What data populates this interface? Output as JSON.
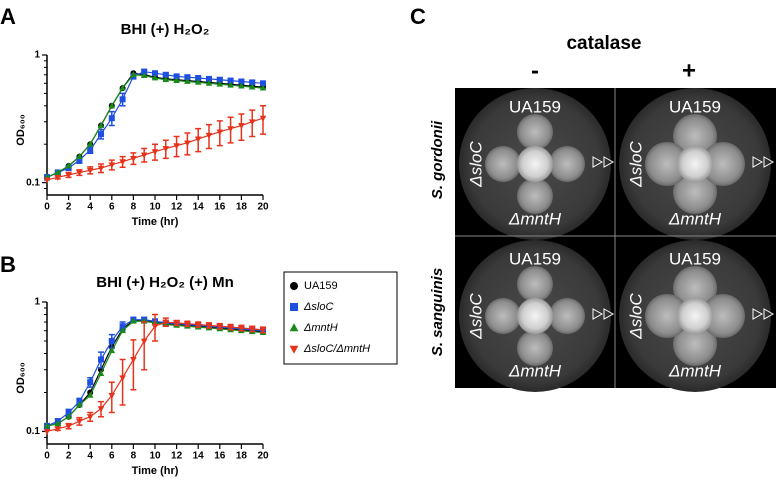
{
  "chart_data": [
    {
      "type": "line",
      "panel": "A",
      "title": "BHI (+) H₂O₂",
      "x_label": "Time (hr)",
      "y_label": "OD₆₀₀",
      "log_y": true,
      "x": [
        0,
        1,
        2,
        3,
        4,
        5,
        6,
        7,
        8,
        9,
        10,
        11,
        12,
        13,
        14,
        15,
        16,
        17,
        18,
        19,
        20
      ],
      "xlim": [
        0,
        20
      ],
      "xticks": [
        0,
        2,
        4,
        6,
        8,
        10,
        12,
        14,
        16,
        18,
        20
      ],
      "ylim": [
        0.08,
        1
      ],
      "yticks": [
        0.1,
        1
      ],
      "series": [
        {
          "name": "UA159",
          "color": "#000000",
          "marker": "circle",
          "values": [
            0.11,
            0.12,
            0.135,
            0.16,
            0.2,
            0.28,
            0.4,
            0.55,
            0.72,
            0.7,
            0.67,
            0.65,
            0.64,
            0.63,
            0.62,
            0.61,
            0.6,
            0.59,
            0.58,
            0.57,
            0.56
          ]
        },
        {
          "name": "ΔsloC",
          "color": "#1f4fe0",
          "marker": "square",
          "values": [
            0.11,
            0.12,
            0.13,
            0.15,
            0.18,
            0.24,
            0.32,
            0.45,
            0.68,
            0.74,
            0.72,
            0.7,
            0.68,
            0.67,
            0.66,
            0.65,
            0.64,
            0.63,
            0.62,
            0.61,
            0.6
          ],
          "errors": [
            0.005,
            0.005,
            0.005,
            0.008,
            0.01,
            0.02,
            0.04,
            0.05,
            0.03,
            0.03,
            0.02,
            0.02,
            0.02,
            0.02,
            0.02,
            0.02,
            0.02,
            0.02,
            0.02,
            0.02,
            0.02
          ]
        },
        {
          "name": "ΔmntH",
          "color": "#1a8a1a",
          "marker": "triangle-up",
          "values": [
            0.11,
            0.12,
            0.135,
            0.16,
            0.2,
            0.28,
            0.4,
            0.55,
            0.7,
            0.69,
            0.66,
            0.64,
            0.63,
            0.62,
            0.61,
            0.6,
            0.59,
            0.58,
            0.57,
            0.56,
            0.55
          ]
        },
        {
          "name": "ΔsloC/ΔmntH",
          "color": "#e8331c",
          "marker": "triangle-down",
          "values": [
            0.105,
            0.11,
            0.115,
            0.12,
            0.125,
            0.13,
            0.138,
            0.146,
            0.155,
            0.165,
            0.175,
            0.185,
            0.195,
            0.205,
            0.22,
            0.235,
            0.25,
            0.265,
            0.28,
            0.3,
            0.32
          ],
          "errors": [
            0,
            0.003,
            0.005,
            0.006,
            0.008,
            0.01,
            0.012,
            0.014,
            0.016,
            0.02,
            0.025,
            0.03,
            0.035,
            0.04,
            0.045,
            0.05,
            0.055,
            0.06,
            0.065,
            0.07,
            0.08
          ]
        }
      ]
    },
    {
      "type": "line",
      "panel": "B",
      "title": "BHI (+) H₂O₂ (+) Mn",
      "x_label": "Time (hr)",
      "y_label": "OD₆₀₀",
      "log_y": true,
      "x": [
        0,
        1,
        2,
        3,
        4,
        5,
        6,
        7,
        8,
        9,
        10,
        11,
        12,
        13,
        14,
        15,
        16,
        17,
        18,
        19,
        20
      ],
      "xlim": [
        0,
        20
      ],
      "xticks": [
        0,
        2,
        4,
        6,
        8,
        10,
        12,
        14,
        16,
        18,
        20
      ],
      "ylim": [
        0.08,
        1
      ],
      "yticks": [
        0.1,
        1
      ],
      "series": [
        {
          "name": "UA159",
          "color": "#000000",
          "marker": "circle",
          "values": [
            0.11,
            0.115,
            0.13,
            0.16,
            0.2,
            0.3,
            0.45,
            0.62,
            0.72,
            0.72,
            0.7,
            0.68,
            0.67,
            0.66,
            0.65,
            0.64,
            0.63,
            0.62,
            0.61,
            0.6,
            0.59
          ]
        },
        {
          "name": "ΔsloC",
          "color": "#1f4fe0",
          "marker": "square",
          "values": [
            0.11,
            0.12,
            0.14,
            0.17,
            0.24,
            0.36,
            0.5,
            0.65,
            0.73,
            0.73,
            0.71,
            0.69,
            0.68,
            0.67,
            0.66,
            0.65,
            0.64,
            0.63,
            0.62,
            0.61,
            0.6
          ],
          "errors": [
            0.005,
            0.005,
            0.008,
            0.01,
            0.02,
            0.05,
            0.06,
            0.05,
            0.03,
            0.03,
            0.02,
            0.02,
            0.02,
            0.02,
            0.02,
            0.02,
            0.02,
            0.02,
            0.02,
            0.02,
            0.02
          ]
        },
        {
          "name": "ΔmntH",
          "color": "#1a8a1a",
          "marker": "triangle-up",
          "values": [
            0.11,
            0.115,
            0.13,
            0.16,
            0.19,
            0.28,
            0.42,
            0.6,
            0.71,
            0.71,
            0.69,
            0.67,
            0.66,
            0.65,
            0.64,
            0.63,
            0.62,
            0.61,
            0.6,
            0.59,
            0.58
          ]
        },
        {
          "name": "ΔsloC/ΔmntH",
          "color": "#e8331c",
          "marker": "triangle-down",
          "values": [
            0.1,
            0.105,
            0.11,
            0.12,
            0.13,
            0.15,
            0.19,
            0.26,
            0.36,
            0.5,
            0.65,
            0.7,
            0.69,
            0.68,
            0.67,
            0.66,
            0.65,
            0.64,
            0.63,
            0.62,
            0.61
          ],
          "errors": [
            0,
            0.003,
            0.005,
            0.008,
            0.01,
            0.02,
            0.05,
            0.1,
            0.15,
            0.2,
            0.15,
            0.05,
            0.03,
            0.03,
            0.03,
            0.03,
            0.03,
            0.03,
            0.03,
            0.03,
            0.03
          ]
        }
      ]
    }
  ],
  "panel_c": {
    "panel": "C",
    "header": "catalase",
    "columns": [
      "-",
      "+"
    ],
    "rows": [
      "S. gordonii",
      "S. sanguinis"
    ],
    "strains": [
      "UA159",
      "ΔsloC",
      "ΔmntH"
    ]
  }
}
